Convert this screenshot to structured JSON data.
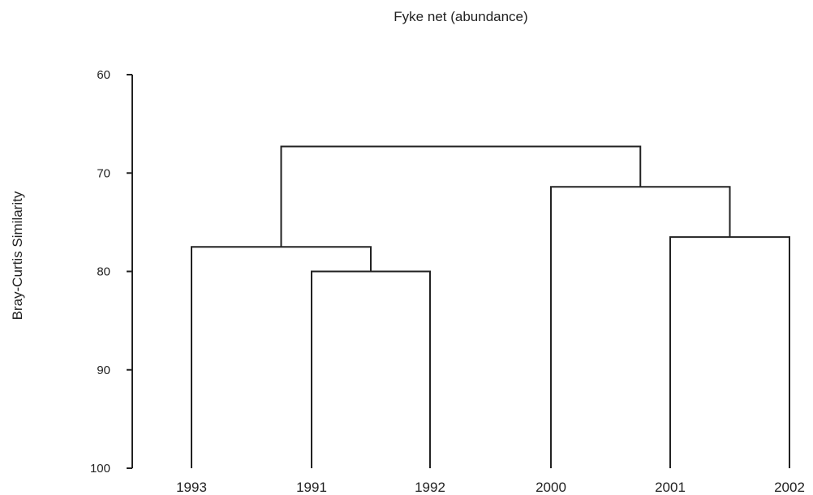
{
  "chart_data": {
    "type": "dendrogram",
    "title": "Fyke net (abundance)",
    "ylabel": "Bray-Curtis Similarity",
    "ylim": [
      60,
      100
    ],
    "y_inverted": true,
    "y_ticks": [
      60,
      70,
      80,
      90,
      100
    ],
    "leaves": [
      "1993",
      "1991",
      "1992",
      "2000",
      "2001",
      "2002"
    ],
    "merges": [
      {
        "left": "1991",
        "right": "1992",
        "similarity": 80
      },
      {
        "left": "2001",
        "right": "2002",
        "similarity": 76.5
      },
      {
        "left": "2000",
        "right": "[2001,2002]",
        "similarity": 71.4
      },
      {
        "left": "1993",
        "right": "[1991,1992]",
        "similarity": 77.5
      },
      {
        "left": "[1993,1991,1992]",
        "right": "[2000,2001,2002]",
        "similarity": 67.3
      }
    ],
    "grid": false,
    "legend": "none"
  }
}
